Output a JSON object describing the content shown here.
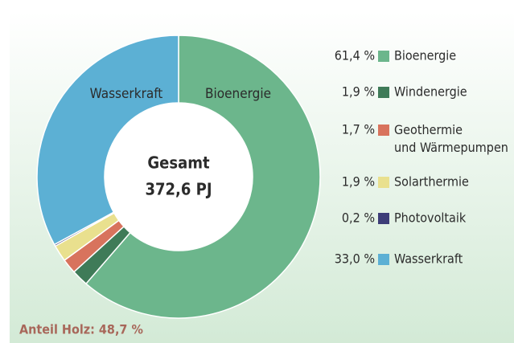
{
  "chart_data": {
    "type": "pie",
    "donut": true,
    "categories": [
      "Bioenergie",
      "Windenergie",
      "Geothermie und Wärmepumpen",
      "Solarthermie",
      "Photovoltaik",
      "Wasserkraft"
    ],
    "values": [
      61.4,
      1.9,
      1.7,
      1.9,
      0.2,
      33.0
    ],
    "value_labels": [
      "61,4 %",
      "1,9 %",
      "1,7 %",
      "1,9 %",
      "0,2 %",
      "33,0 %"
    ],
    "colors": [
      "#6cb68c",
      "#3f7b58",
      "#d8735d",
      "#e9e08e",
      "#3d3d78",
      "#5cb0d4"
    ],
    "center_text": [
      "Gesamt",
      "372,6 PJ"
    ],
    "annotation": "Anteil Holz: 48,7 %"
  }
}
